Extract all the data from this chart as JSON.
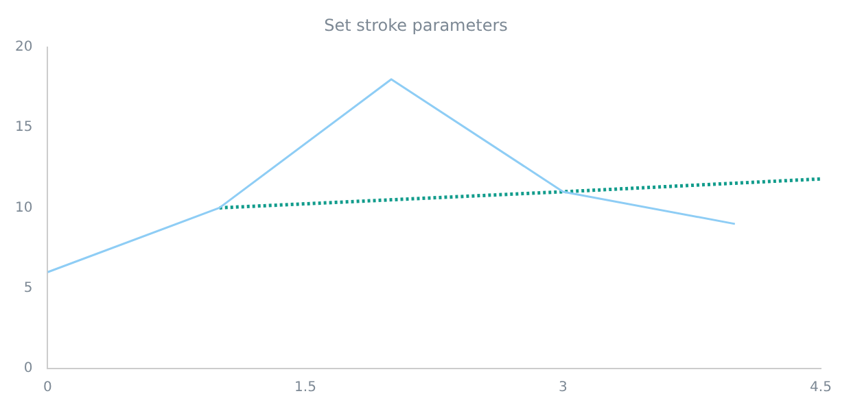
{
  "chart_data": {
    "type": "line",
    "title": "Set stroke parameters",
    "xlim": [
      0,
      4.5
    ],
    "xticks": [
      0,
      1.5,
      3,
      4.5
    ],
    "ylim": [
      0,
      20
    ],
    "yticks": [
      0,
      5,
      10,
      15,
      20
    ],
    "grid": false,
    "legend": false,
    "marker": "none",
    "series": [
      {
        "color": "#8ecdf5",
        "x": [
          0,
          1,
          2,
          3,
          4
        ],
        "values": [
          6,
          10,
          18,
          11,
          9
        ],
        "line_style": "solid"
      },
      {
        "color": "#129c8c",
        "x": [
          1,
          3,
          4.5
        ],
        "values": [
          10,
          11,
          11.8
        ],
        "line_style": "dotted"
      }
    ]
  }
}
